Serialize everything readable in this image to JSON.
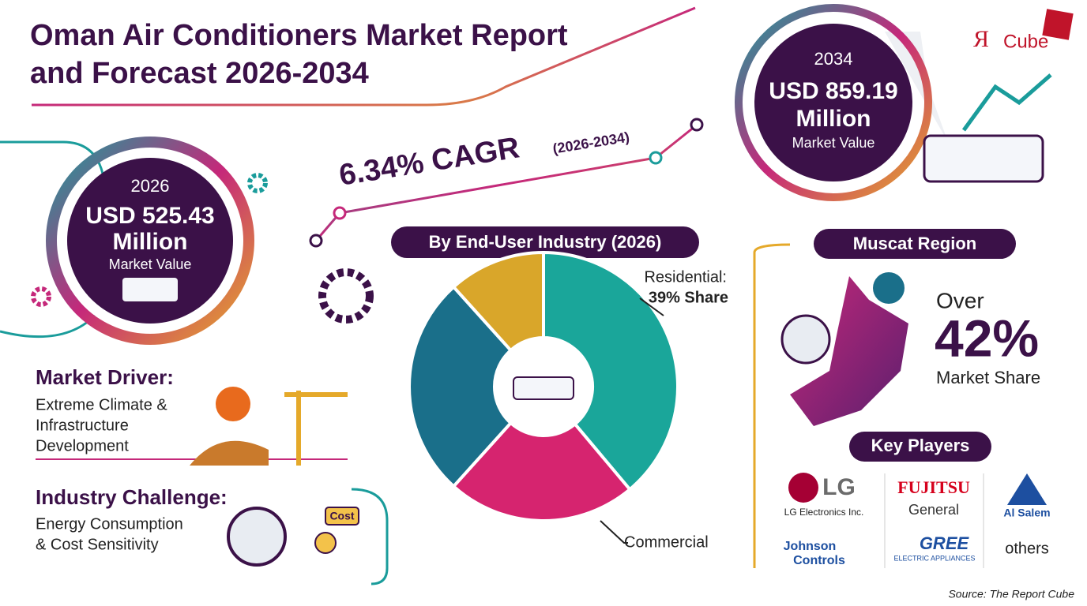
{
  "header": {
    "title_line1": "Oman Air Conditioners Market Report",
    "title_line2": "and Forecast 2026-2034"
  },
  "logo": {
    "mark": "Я",
    "text": "Cube"
  },
  "value_2026": {
    "year": "2026",
    "amount": "USD 525.43",
    "unit": "Million",
    "label": "Market Value"
  },
  "value_2034": {
    "year": "2034",
    "amount": "USD 859.19",
    "unit": "Million",
    "label": "Market Value"
  },
  "cagr": {
    "value": "6.34% CAGR",
    "period": "(2026-2034)"
  },
  "segment_chart": {
    "title": "By End-User Industry (2026)",
    "residential_label": "Residential:",
    "residential_share": "39% Share",
    "commercial_label": "Commercial"
  },
  "region": {
    "title": "Muscat Region",
    "prefix": "Over",
    "share": "42%",
    "label": "Market Share"
  },
  "driver": {
    "title": "Market Driver:",
    "lines": [
      "Extreme Climate &",
      "Infrastructure",
      "Development"
    ]
  },
  "challenge": {
    "title": "Industry Challenge:",
    "lines": [
      "Energy Consumption",
      "& Cost Sensitivity"
    ],
    "icon_label": "Cost"
  },
  "key_players": {
    "title": "Key Players",
    "players": [
      {
        "name": "LG",
        "sub": "LG Electronics Inc."
      },
      {
        "name": "FUJITSU",
        "sub": "General"
      },
      {
        "name": "Al Salem"
      },
      {
        "name": "Johnson",
        "sub": "Controls"
      },
      {
        "name": "GREE",
        "sub": "ELECTRIC APPLIANCES"
      },
      {
        "name": "others"
      }
    ]
  },
  "source": "Source: The Report Cube"
}
